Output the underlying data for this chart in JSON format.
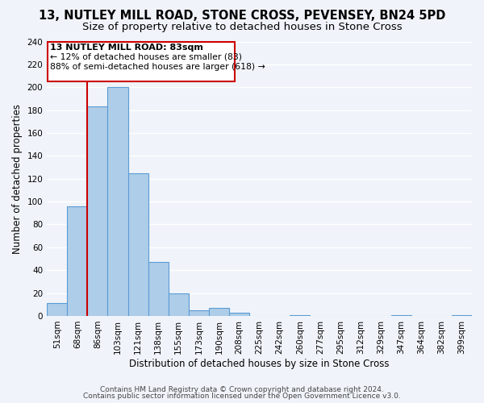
{
  "title": "13, NUTLEY MILL ROAD, STONE CROSS, PEVENSEY, BN24 5PD",
  "subtitle": "Size of property relative to detached houses in Stone Cross",
  "xlabel": "Distribution of detached houses by size in Stone Cross",
  "ylabel": "Number of detached properties",
  "bar_color": "#aecde8",
  "bar_edge_color": "#5b9bd5",
  "bins": [
    "51sqm",
    "68sqm",
    "86sqm",
    "103sqm",
    "121sqm",
    "138sqm",
    "155sqm",
    "173sqm",
    "190sqm",
    "208sqm",
    "225sqm",
    "242sqm",
    "260sqm",
    "277sqm",
    "295sqm",
    "312sqm",
    "329sqm",
    "347sqm",
    "364sqm",
    "382sqm",
    "399sqm"
  ],
  "values": [
    11,
    96,
    183,
    200,
    125,
    47,
    20,
    5,
    7,
    3,
    0,
    0,
    1,
    0,
    0,
    0,
    0,
    1,
    0,
    0,
    1
  ],
  "ylim": [
    0,
    240
  ],
  "yticks": [
    0,
    20,
    40,
    60,
    80,
    100,
    120,
    140,
    160,
    180,
    200,
    220,
    240
  ],
  "vline_color": "#cc0000",
  "vline_x_index": 2,
  "annotation_title": "13 NUTLEY MILL ROAD: 83sqm",
  "annotation_line1": "← 12% of detached houses are smaller (83)",
  "annotation_line2": "88% of semi-detached houses are larger (618) →",
  "annotation_box_color": "#cc0000",
  "footer1": "Contains HM Land Registry data © Crown copyright and database right 2024.",
  "footer2": "Contains public sector information licensed under the Open Government Licence v3.0.",
  "background_color": "#f0f4fa",
  "plot_background": "#f0f4fa",
  "grid_color": "#d8e4f0",
  "title_fontsize": 10.5,
  "subtitle_fontsize": 9.5,
  "xlabel_fontsize": 8.5,
  "ylabel_fontsize": 8.5,
  "tick_fontsize": 7.5,
  "footer_fontsize": 6.5,
  "ann_title_fontsize": 8,
  "ann_text_fontsize": 7.8
}
